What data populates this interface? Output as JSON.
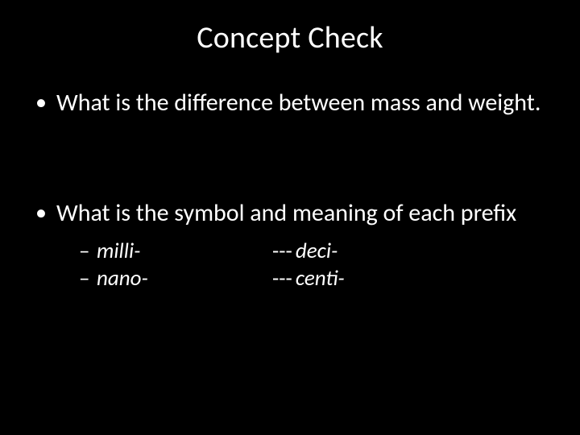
{
  "background_color": "#000000",
  "text_color": "#ffffff",
  "title": "Concept Check",
  "title_fontsize": 38,
  "bullets": [
    {
      "text": "What is the difference between mass and weight."
    },
    {
      "text": "What is the symbol and meaning of each prefix"
    }
  ],
  "bullet_fontsize": 30,
  "sub_items": {
    "left": [
      "milli-",
      "nano-"
    ],
    "right": [
      "deci-",
      "centi-"
    ],
    "right_dash_prefix": "---"
  },
  "sub_fontsize": 27,
  "sub_font_style": "italic"
}
